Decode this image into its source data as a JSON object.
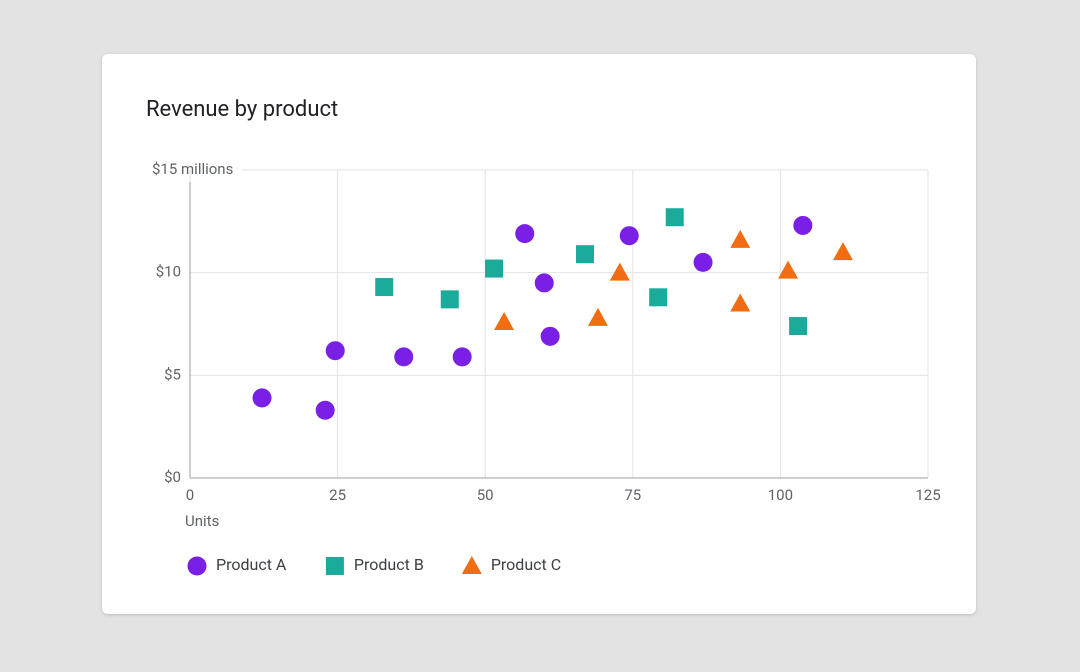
{
  "chart_data": {
    "type": "scatter",
    "title": "Revenue by product",
    "x_label": "Units",
    "xlim": [
      0,
      125
    ],
    "xticks": [
      0,
      25,
      50,
      75,
      100,
      125
    ],
    "ylim": [
      0,
      15
    ],
    "yticks": [
      {
        "value": 0,
        "label": "$0"
      },
      {
        "value": 5,
        "label": "$5"
      },
      {
        "value": 10,
        "label": "$10"
      },
      {
        "value": 15,
        "label": "$15 millions"
      }
    ],
    "grid": true,
    "legend": "bottom",
    "series": [
      {
        "name": "Product A",
        "color": "#7a1fe6",
        "marker": "circle",
        "x": [
          12.2,
          22.9,
          24.6,
          36.2,
          46.1,
          56.7,
          60.0,
          61.0,
          74.4,
          86.9,
          103.8
        ],
        "values": [
          3.9,
          3.3,
          6.2,
          5.9,
          5.9,
          11.9,
          9.5,
          6.9,
          11.8,
          10.5,
          12.3
        ]
      },
      {
        "name": "Product B",
        "color": "#1aab9b",
        "marker": "square",
        "x": [
          32.9,
          44.0,
          51.5,
          66.9,
          82.1,
          79.3,
          103.0
        ],
        "values": [
          9.3,
          8.7,
          10.2,
          10.9,
          12.7,
          8.8,
          7.4
        ]
      },
      {
        "name": "Product C",
        "color": "#f26d12",
        "marker": "triangle",
        "x": [
          53.2,
          69.1,
          72.8,
          93.2,
          93.2,
          101.3,
          110.6
        ],
        "values": [
          7.6,
          7.8,
          10.0,
          11.6,
          8.5,
          10.1,
          11.0
        ]
      }
    ]
  }
}
